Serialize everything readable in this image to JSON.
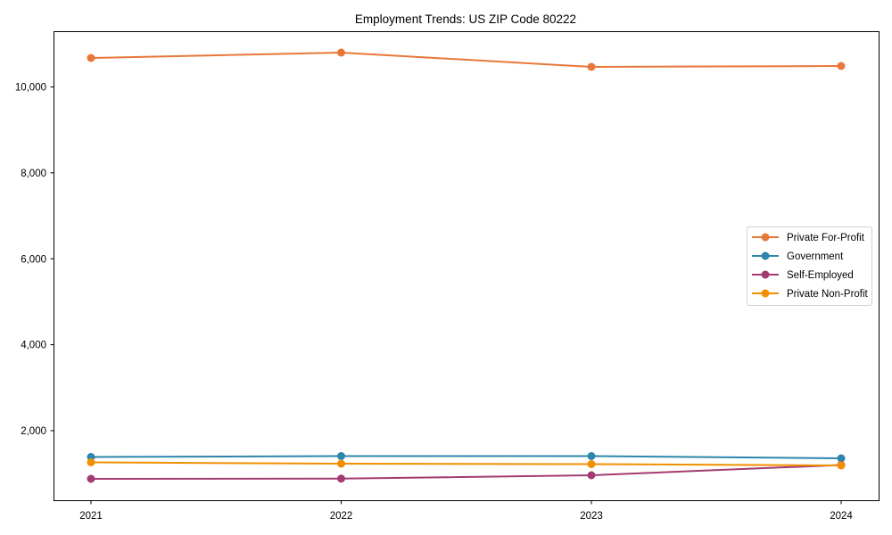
{
  "chart_data": {
    "type": "line",
    "title": "Employment Trends: US ZIP Code 80222",
    "xlabel": "",
    "ylabel": "",
    "categories": [
      "2021",
      "2022",
      "2023",
      "2024"
    ],
    "ylim": [
      340,
      11300
    ],
    "yticks": [
      2000,
      4000,
      6000,
      8000,
      10000
    ],
    "ytick_labels": [
      "2,000",
      "4,000",
      "6,000",
      "8,000",
      "10,000"
    ],
    "grid": false,
    "legend_position": "center right",
    "series": [
      {
        "name": "Private For-Profit",
        "color": "#E8773A",
        "values": [
          10674,
          10798,
          10466,
          10487
        ]
      },
      {
        "name": "Government",
        "color": "#2E86AB",
        "values": [
          1388,
          1409,
          1409,
          1357
        ]
      },
      {
        "name": "Self-Employed",
        "color": "#A23B72",
        "values": [
          879,
          883,
          962,
          1201
        ]
      },
      {
        "name": "Private Non-Profit",
        "color": "#F18F01",
        "values": [
          1263,
          1232,
          1222,
          1191
        ]
      }
    ]
  }
}
